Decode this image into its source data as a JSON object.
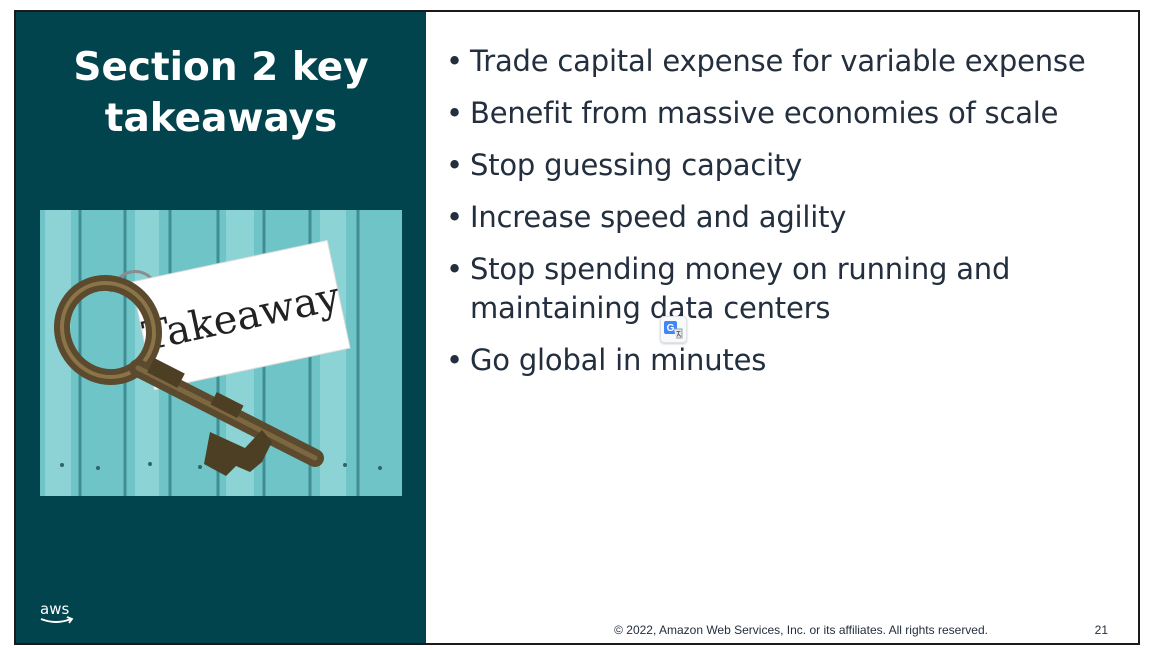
{
  "slide": {
    "title": "Section 2 key takeaways",
    "title_line1": "Section 2 key",
    "title_line2": "takeaways",
    "image": {
      "icon": "key-with-tag-photo",
      "tag_text": "Takeaway"
    },
    "takeaways": [
      "Trade capital expense for variable expense",
      "Benefit from massive economies of scale",
      "Stop guessing capacity",
      "Increase speed and agility",
      "Stop spending money on running and maintaining data centers",
      "Go global in minutes"
    ],
    "footer": "© 2022, Amazon Web Services, Inc. or its affiliates. All rights reserved.",
    "page_number": "21",
    "logo_text": "aws"
  },
  "overlay": {
    "translate_icon": "google-translate-icon"
  },
  "colors": {
    "left_panel": "#01444e",
    "text": "#232f3e",
    "aws_smile": "#ff9900",
    "wood": "#6fc4c8"
  }
}
